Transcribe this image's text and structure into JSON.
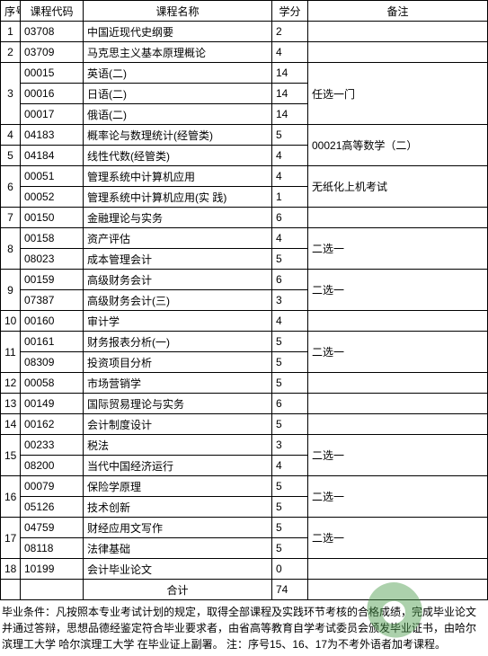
{
  "headers": {
    "seq": "序号",
    "code": "课程代码",
    "name": "课程名称",
    "credit": "学分",
    "remark": "备注"
  },
  "rows": [
    {
      "seq": "1",
      "code": "03708",
      "name": "中国近现代史纲要",
      "credit": "2",
      "remark": "",
      "seqspan": 1,
      "remarkspan": 1
    },
    {
      "seq": "2",
      "code": "03709",
      "name": "马克思主义基本原理概论",
      "credit": "4",
      "remark": "",
      "seqspan": 1,
      "remarkspan": 1
    },
    {
      "seq": "3",
      "code": "00015",
      "name": "英语(二)",
      "credit": "14",
      "remark": "任选一门",
      "seqspan": 3,
      "remarkspan": 3
    },
    {
      "code": "00016",
      "name": "日语(二)",
      "credit": "14"
    },
    {
      "code": "00017",
      "name": "俄语(二)",
      "credit": "14"
    },
    {
      "seq": "4",
      "code": "04183",
      "name": "概率论与数理统计(经管类)",
      "credit": "5",
      "remark": "00021高等数学（二）",
      "seqspan": 1,
      "remarkspan": 2
    },
    {
      "seq": "5",
      "code": "04184",
      "name": "线性代数(经管类)",
      "credit": "4",
      "seqspan": 1
    },
    {
      "seq": "6",
      "code": "00051",
      "name": "管理系统中计算机应用",
      "credit": "4",
      "remark": "无纸化上机考试",
      "seqspan": 2,
      "remarkspan": 2
    },
    {
      "code": "00052",
      "name": "管理系统中计算机应用(实 践)",
      "credit": "1"
    },
    {
      "seq": "7",
      "code": "00150",
      "name": "金融理论与实务",
      "credit": "6",
      "remark": "",
      "seqspan": 1,
      "remarkspan": 1
    },
    {
      "seq": "8",
      "code": "00158",
      "name": "资产评估",
      "credit": "4",
      "remark": "二选一",
      "seqspan": 2,
      "remarkspan": 2
    },
    {
      "code": "08023",
      "name": "成本管理会计",
      "credit": "5"
    },
    {
      "seq": "9",
      "code": "00159",
      "name": "高级财务会计",
      "credit": "6",
      "remark": "二选一",
      "seqspan": 2,
      "remarkspan": 2
    },
    {
      "code": "07387",
      "name": "高级财务会计(三)",
      "credit": "3"
    },
    {
      "seq": "10",
      "code": "00160",
      "name": "审计学",
      "credit": "4",
      "remark": "",
      "seqspan": 1,
      "remarkspan": 1
    },
    {
      "seq": "11",
      "code": "00161",
      "name": "财务报表分析(一)",
      "credit": "5",
      "remark": "二选一",
      "seqspan": 2,
      "remarkspan": 2
    },
    {
      "code": "08309",
      "name": "投资项目分析",
      "credit": "5"
    },
    {
      "seq": "12",
      "code": "00058",
      "name": "市场营销学",
      "credit": "5",
      "remark": "",
      "seqspan": 1,
      "remarkspan": 1
    },
    {
      "seq": "13",
      "code": "00149",
      "name": "国际贸易理论与实务",
      "credit": "6",
      "remark": "",
      "seqspan": 1,
      "remarkspan": 1
    },
    {
      "seq": "14",
      "code": "00162",
      "name": "会计制度设计",
      "credit": "5",
      "remark": "",
      "seqspan": 1,
      "remarkspan": 1
    },
    {
      "seq": "15",
      "code": "00233",
      "name": "税法",
      "credit": "3",
      "remark": "二选一",
      "seqspan": 2,
      "remarkspan": 2
    },
    {
      "code": "08200",
      "name": "当代中国经济运行",
      "credit": "4"
    },
    {
      "seq": "16",
      "code": "00079",
      "name": "保险学原理",
      "credit": "5",
      "remark": "二选一",
      "seqspan": 2,
      "remarkspan": 2
    },
    {
      "code": "05126",
      "name": "技术创新",
      "credit": "5"
    },
    {
      "seq": "17",
      "code": "04759",
      "name": "财经应用文写作",
      "credit": "5",
      "remark": "二选一",
      "seqspan": 2,
      "remarkspan": 2
    },
    {
      "code": "08118",
      "name": "法律基础",
      "credit": "5"
    },
    {
      "seq": "18",
      "code": "10199",
      "name": "会计毕业论文",
      "credit": "0",
      "remark": "",
      "seqspan": 1,
      "remarkspan": 1
    }
  ],
  "total": {
    "label": "合计",
    "credit": "74"
  },
  "footnote": "毕业条件：凡按照本专业考试计划的规定，取得全部课程及实践环节考核的合格成绩，完成毕业论文并通过答辩，思想品德经鉴定符合毕业要求者，由省高等教育自学考试委员会颁发毕业证书，由哈尔滨理工大学 哈尔滨理工大学 在毕业证上副署。 注：序号15、16、17为不考外语者加考课程。"
}
